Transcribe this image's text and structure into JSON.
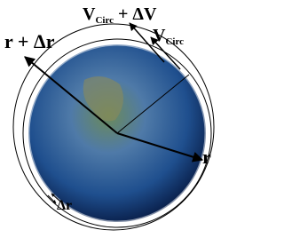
{
  "labels": {
    "v_circ_plus_dv": {
      "main": "V",
      "sub": "Circ",
      "rest": " + ΔV"
    },
    "v_circ": {
      "main": "V",
      "sub": "Circ"
    },
    "r_plus_dr": "r + Δr",
    "r": "r",
    "dr": "Δr"
  }
}
